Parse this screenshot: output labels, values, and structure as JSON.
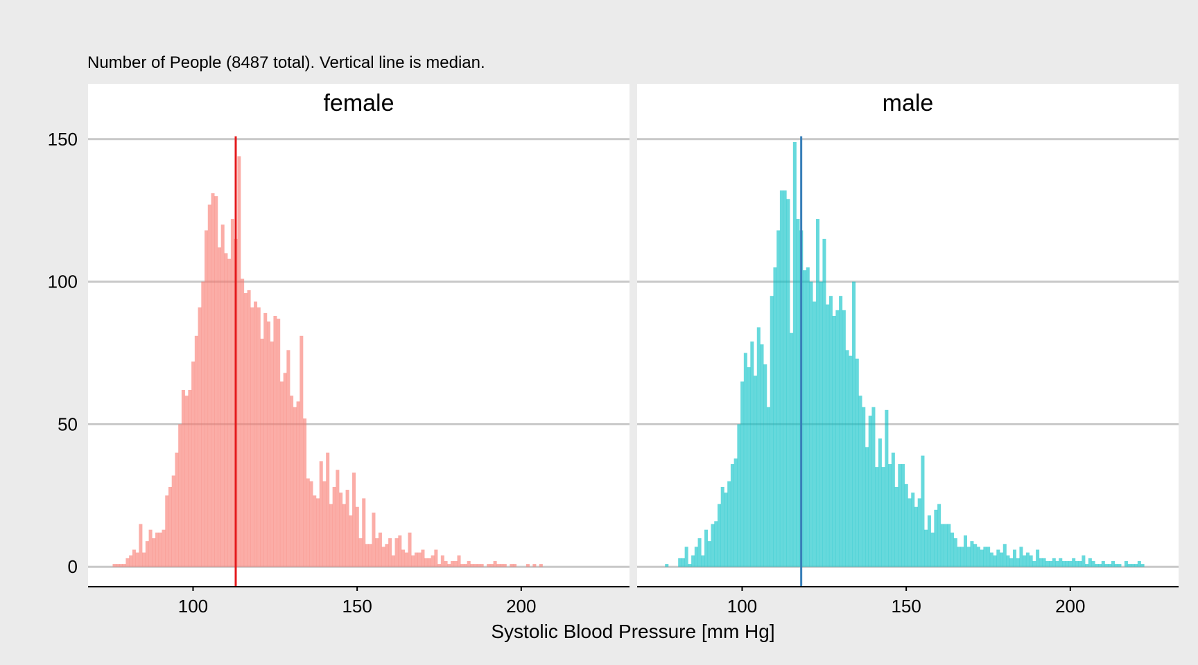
{
  "caption": "Number of People (8487 total). Vertical line is median.",
  "xlabel": "Systolic Blood Pressure [mm Hg]",
  "colors": {
    "background": "#ebebeb",
    "panel": "#ffffff",
    "grid": "#c8c8c8",
    "female_fill": "#f8766d",
    "female_median": "#e41a1c",
    "male_fill": "#00bfc4",
    "male_median": "#377eb8"
  },
  "chart_data": [
    {
      "type": "bar",
      "title": "female",
      "xlim": [
        68,
        233
      ],
      "ylim": [
        -7,
        157
      ],
      "x_ticks": [
        100,
        150,
        200
      ],
      "y_ticks": [
        0,
        50,
        100,
        150
      ],
      "median": 113,
      "grid": true,
      "bin_width": 1,
      "x": [
        76,
        77,
        78,
        79,
        80,
        81,
        82,
        83,
        84,
        85,
        86,
        87,
        88,
        89,
        90,
        91,
        92,
        93,
        94,
        95,
        96,
        97,
        98,
        99,
        100,
        101,
        102,
        103,
        104,
        105,
        106,
        107,
        108,
        109,
        110,
        111,
        112,
        113,
        114,
        115,
        116,
        117,
        118,
        119,
        120,
        121,
        122,
        123,
        124,
        125,
        126,
        127,
        128,
        129,
        130,
        131,
        132,
        133,
        134,
        135,
        136,
        137,
        138,
        139,
        140,
        141,
        142,
        143,
        144,
        145,
        146,
        147,
        148,
        149,
        150,
        151,
        152,
        153,
        154,
        155,
        156,
        157,
        158,
        159,
        160,
        161,
        162,
        163,
        164,
        165,
        166,
        167,
        168,
        169,
        170,
        171,
        172,
        173,
        174,
        175,
        176,
        177,
        178,
        179,
        180,
        181,
        182,
        183,
        184,
        185,
        186,
        187,
        188,
        189,
        190,
        191,
        192,
        193,
        194,
        195,
        196,
        197,
        198,
        199,
        200,
        201,
        202,
        203,
        204,
        205,
        206,
        207,
        208,
        209,
        210,
        211,
        212,
        213,
        214,
        215,
        216,
        217,
        218,
        219,
        220,
        221,
        222,
        223,
        224,
        225,
        226,
        227
      ],
      "values": [
        1,
        1,
        1,
        1,
        3,
        4,
        6,
        5,
        15,
        5,
        9,
        13,
        10,
        12,
        12,
        13,
        25,
        28,
        32,
        40,
        50,
        62,
        60,
        62,
        72,
        81,
        91,
        100,
        118,
        127,
        131,
        130,
        112,
        120,
        110,
        108,
        122,
        115,
        144,
        101,
        96,
        97,
        91,
        93,
        91,
        80,
        89,
        86,
        79,
        88,
        87,
        65,
        68,
        76,
        60,
        56,
        58,
        81,
        52,
        31,
        30,
        25,
        24,
        37,
        30,
        40,
        22,
        28,
        34,
        26,
        22,
        27,
        18,
        33,
        21,
        10,
        24,
        8,
        8,
        19,
        10,
        12,
        7,
        8,
        10,
        4,
        10,
        11,
        6,
        5,
        12,
        4,
        5,
        5,
        6,
        3,
        3,
        4,
        6,
        1,
        4,
        2,
        1,
        2,
        2,
        4,
        1,
        1,
        2,
        1,
        1,
        1,
        1,
        0,
        1,
        1,
        2,
        1,
        1,
        1,
        0,
        1,
        1,
        0,
        0,
        0,
        1,
        0,
        1,
        0,
        1,
        0,
        0,
        0,
        0,
        0,
        0,
        0,
        0,
        0,
        0,
        0,
        0,
        0,
        0,
        0,
        0,
        0,
        0,
        0,
        0,
        0
      ]
    },
    {
      "type": "bar",
      "title": "male",
      "xlim": [
        68,
        233
      ],
      "ylim": [
        -7,
        157
      ],
      "x_ticks": [
        100,
        150,
        200
      ],
      "y_ticks": [
        0,
        50,
        100,
        150
      ],
      "median": 118,
      "grid": true,
      "bin_width": 1,
      "x": [
        76,
        77,
        78,
        79,
        80,
        81,
        82,
        83,
        84,
        85,
        86,
        87,
        88,
        89,
        90,
        91,
        92,
        93,
        94,
        95,
        96,
        97,
        98,
        99,
        100,
        101,
        102,
        103,
        104,
        105,
        106,
        107,
        108,
        109,
        110,
        111,
        112,
        113,
        114,
        115,
        116,
        117,
        118,
        119,
        120,
        121,
        122,
        123,
        124,
        125,
        126,
        127,
        128,
        129,
        130,
        131,
        132,
        133,
        134,
        135,
        136,
        137,
        138,
        139,
        140,
        141,
        142,
        143,
        144,
        145,
        146,
        147,
        148,
        149,
        150,
        151,
        152,
        153,
        154,
        155,
        156,
        157,
        158,
        159,
        160,
        161,
        162,
        163,
        164,
        165,
        166,
        167,
        168,
        169,
        170,
        171,
        172,
        173,
        174,
        175,
        176,
        177,
        178,
        179,
        180,
        181,
        182,
        183,
        184,
        185,
        186,
        187,
        188,
        189,
        190,
        191,
        192,
        193,
        194,
        195,
        196,
        197,
        198,
        199,
        200,
        201,
        202,
        203,
        204,
        205,
        206,
        207,
        208,
        209,
        210,
        211,
        212,
        213,
        214,
        215,
        216,
        217,
        218,
        219,
        220,
        221,
        222
      ],
      "values": [
        0,
        1,
        0,
        0,
        0,
        3,
        3,
        7,
        1,
        4,
        7,
        10,
        4,
        13,
        9,
        15,
        16,
        22,
        28,
        26,
        30,
        36,
        38,
        50,
        65,
        75,
        70,
        79,
        67,
        84,
        78,
        71,
        56,
        95,
        105,
        118,
        132,
        132,
        129,
        82,
        149,
        122,
        118,
        104,
        105,
        100,
        93,
        122,
        100,
        115,
        92,
        95,
        88,
        90,
        95,
        90,
        76,
        74,
        100,
        73,
        60,
        56,
        42,
        53,
        56,
        35,
        45,
        35,
        55,
        36,
        40,
        28,
        36,
        36,
        29,
        24,
        26,
        21,
        24,
        39,
        13,
        18,
        12,
        20,
        22,
        15,
        15,
        15,
        12,
        10,
        7,
        7,
        11,
        7,
        9,
        8,
        7,
        6,
        7,
        7,
        5,
        4,
        6,
        5,
        8,
        4,
        3,
        6,
        3,
        7,
        4,
        5,
        4,
        2,
        6,
        3,
        3,
        2,
        2,
        3,
        2,
        3,
        2,
        2,
        2,
        3,
        2,
        2,
        4,
        1,
        3,
        2,
        1,
        1,
        2,
        1,
        1,
        2,
        1,
        1,
        0,
        2,
        1,
        1,
        1,
        2,
        1
      ]
    }
  ]
}
